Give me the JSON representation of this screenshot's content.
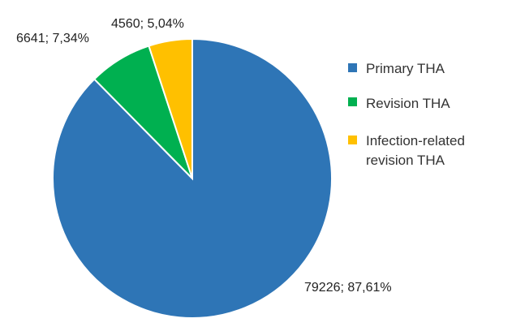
{
  "chart_data": {
    "type": "pie",
    "title": "",
    "legend_position": "right",
    "slices": [
      {
        "name": "Primary THA",
        "value": 79226,
        "percent_label": "87,61%",
        "label": "79226; 87,61%",
        "color": "#2e75b6"
      },
      {
        "name": "Revision THA",
        "value": 6641,
        "percent_label": "7,34%",
        "label": "6641; 7,34%",
        "color": "#00b050"
      },
      {
        "name": "Infection-related revision THA",
        "value": 4560,
        "percent_label": "5,04%",
        "label": "4560; 5,04%",
        "color": "#ffc000"
      }
    ],
    "legend": [
      {
        "lines": [
          "Primary THA"
        ],
        "color": "#2e75b6"
      },
      {
        "lines": [
          "Revision THA"
        ],
        "color": "#00b050"
      },
      {
        "lines": [
          "Infection-related",
          "revision THA"
        ],
        "color": "#ffc000"
      }
    ]
  }
}
